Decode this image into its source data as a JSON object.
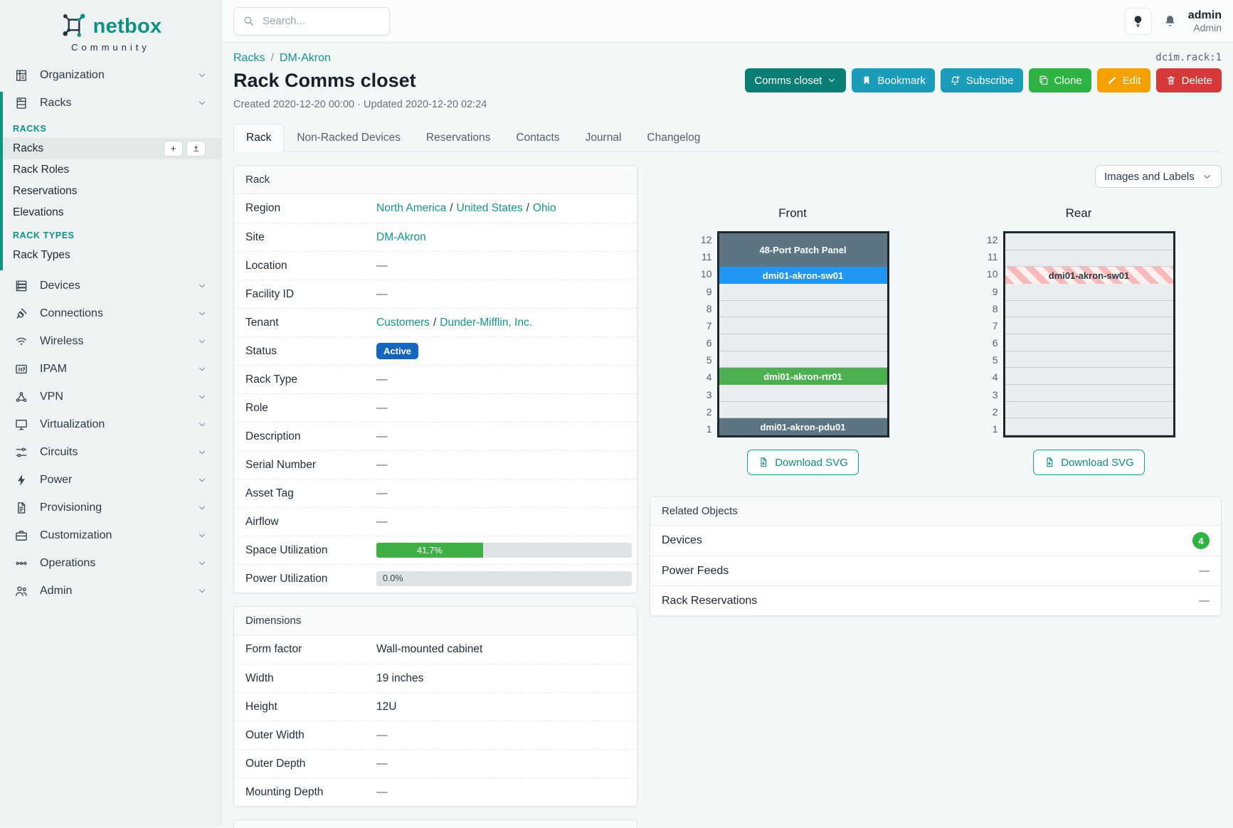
{
  "brand": {
    "name": "netbox",
    "tagline": "Community"
  },
  "topbar": {
    "search_placeholder": "Search...",
    "user_name": "admin",
    "user_role": "Admin"
  },
  "page": {
    "object_ref": "dcim.rack:1",
    "breadcrumb": [
      "Racks",
      "DM-Akron"
    ],
    "title": "Rack Comms closet",
    "meta": "Created 2020-12-20 00:00 · Updated 2020-12-20 02:24",
    "tabs": [
      {
        "label": "Rack",
        "active": true
      },
      {
        "label": "Non-Racked Devices",
        "active": false
      },
      {
        "label": "Reservations",
        "active": false
      },
      {
        "label": "Contacts",
        "active": false
      },
      {
        "label": "Journal",
        "active": false
      },
      {
        "label": "Changelog",
        "active": false
      }
    ],
    "actions": [
      {
        "label": "Comms closet",
        "style": "teal-dark",
        "icon": "chevron-down-icon",
        "icon_after": true
      },
      {
        "label": "Bookmark",
        "style": "cyan",
        "icon": "bookmark-icon"
      },
      {
        "label": "Subscribe",
        "style": "cyan",
        "icon": "bell-plus-icon"
      },
      {
        "label": "Clone",
        "style": "green",
        "icon": "copy-icon"
      },
      {
        "label": "Edit",
        "style": "amber",
        "icon": "pencil-icon"
      },
      {
        "label": "Delete",
        "style": "red",
        "icon": "trash-icon"
      }
    ]
  },
  "sidebar": {
    "top_groups": [
      {
        "label": "Organization",
        "icon": "building-icon",
        "expanded": false
      },
      {
        "label": "Racks",
        "icon": "rack-icon",
        "expanded": true
      }
    ],
    "sections": [
      {
        "header": "RACKS",
        "items": [
          {
            "label": "Racks",
            "active": true,
            "buttons": [
              {
                "name": "add-button",
                "icon": "plus-icon"
              },
              {
                "name": "import-button",
                "icon": "upload-icon"
              }
            ]
          },
          {
            "label": "Rack Roles",
            "active": false
          },
          {
            "label": "Reservations",
            "active": false
          },
          {
            "label": "Elevations",
            "active": false
          }
        ]
      },
      {
        "header": "RACK TYPES",
        "items": [
          {
            "label": "Rack Types",
            "active": false
          }
        ]
      }
    ],
    "bottom_groups": [
      {
        "label": "Devices",
        "icon": "server-icon"
      },
      {
        "label": "Connections",
        "icon": "plug-icon"
      },
      {
        "label": "Wireless",
        "icon": "wifi-icon"
      },
      {
        "label": "IPAM",
        "icon": "ip-grid-icon"
      },
      {
        "label": "VPN",
        "icon": "network-icon"
      },
      {
        "label": "Virtualization",
        "icon": "monitor-icon"
      },
      {
        "label": "Circuits",
        "icon": "circuit-icon"
      },
      {
        "label": "Power",
        "icon": "bolt-icon"
      },
      {
        "label": "Provisioning",
        "icon": "document-icon"
      },
      {
        "label": "Customization",
        "icon": "briefcase-icon"
      },
      {
        "label": "Operations",
        "icon": "operations-icon"
      },
      {
        "label": "Admin",
        "icon": "users-icon"
      }
    ]
  },
  "rack_panel": {
    "title": "Rack",
    "rows": [
      {
        "label": "Region",
        "type": "links",
        "links": [
          "North America",
          "United States",
          "Ohio"
        ]
      },
      {
        "label": "Site",
        "type": "links",
        "links": [
          "DM-Akron"
        ]
      },
      {
        "label": "Location",
        "type": "text",
        "value": "—"
      },
      {
        "label": "Facility ID",
        "type": "text",
        "value": "—"
      },
      {
        "label": "Tenant",
        "type": "links",
        "links": [
          "Customers",
          "Dunder-Mifflin, Inc."
        ]
      },
      {
        "label": "Status",
        "type": "badge",
        "value": "Active",
        "color": "#1565c0"
      },
      {
        "label": "Rack Type",
        "type": "text",
        "value": "—"
      },
      {
        "label": "Role",
        "type": "text",
        "value": "—"
      },
      {
        "label": "Description",
        "type": "text",
        "value": "—"
      },
      {
        "label": "Serial Number",
        "type": "text",
        "value": "—"
      },
      {
        "label": "Asset Tag",
        "type": "text",
        "value": "—"
      },
      {
        "label": "Airflow",
        "type": "text",
        "value": "—"
      },
      {
        "label": "Space Utilization",
        "type": "progress",
        "percent": 41.7,
        "display": "41.7%",
        "color": "#3faf46"
      },
      {
        "label": "Power Utilization",
        "type": "progress",
        "percent": 0.0,
        "display": "0.0%",
        "color": "#3faf46"
      }
    ]
  },
  "dimensions_panel": {
    "title": "Dimensions",
    "rows": [
      {
        "label": "Form factor",
        "value": "Wall-mounted cabinet"
      },
      {
        "label": "Width",
        "value": "19 inches"
      },
      {
        "label": "Height",
        "value": "12U"
      },
      {
        "label": "Outer Width",
        "value": "—"
      },
      {
        "label": "Outer Depth",
        "value": "—"
      },
      {
        "label": "Mounting Depth",
        "value": "—"
      }
    ]
  },
  "elevation": {
    "display_mode": "Images and Labels",
    "download_label": "Download SVG",
    "units": 12,
    "views": [
      {
        "title": "Front",
        "devices": [
          {
            "name": "48-Port Patch Panel",
            "u": 11,
            "height": 2,
            "color": "#5d7582",
            "text_color": "#ffffff",
            "striped": false
          },
          {
            "name": "dmi01-akron-sw01",
            "u": 10,
            "height": 1,
            "color": "#2196f3",
            "text_color": "#ffffff",
            "striped": false
          },
          {
            "name": "dmi01-akron-rtr01",
            "u": 4,
            "height": 1,
            "color": "#4caf50",
            "text_color": "#ffffff",
            "striped": false
          },
          {
            "name": "dmi01-akron-pdu01",
            "u": 1,
            "height": 1,
            "color": "#5d7582",
            "text_color": "#ffffff",
            "striped": false
          }
        ]
      },
      {
        "title": "Rear",
        "devices": [
          {
            "name": "dmi01-akron-sw01",
            "u": 10,
            "height": 1,
            "color": "",
            "text_color": "#2c3a45",
            "striped": true
          }
        ]
      }
    ]
  },
  "related_objects": {
    "title": "Related Objects",
    "rows": [
      {
        "label": "Devices",
        "badge": "4",
        "badge_color": "#2fb344"
      },
      {
        "label": "Power Feeds",
        "value": "—"
      },
      {
        "label": "Rack Reservations",
        "value": "—"
      }
    ]
  }
}
